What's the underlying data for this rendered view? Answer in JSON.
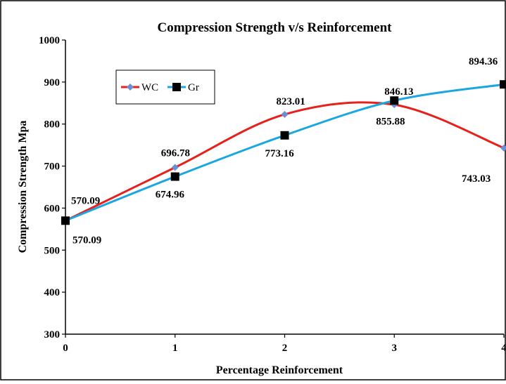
{
  "chart_data": {
    "type": "line",
    "title": "Compression Strength v/s Reinforcement",
    "xlabel": "Percentage Reinforcement",
    "ylabel": "Compression Strength Mpa",
    "x": [
      0,
      1,
      2,
      3,
      4
    ],
    "xlim": [
      0,
      4
    ],
    "ylim": [
      300,
      1000
    ],
    "yticks": [
      "300",
      "400",
      "500",
      "600",
      "700",
      "800",
      "900",
      "1000"
    ],
    "xticks": [
      "0",
      "1",
      "2",
      "3",
      "4"
    ],
    "grid": false,
    "legend_position": "top-left",
    "series": [
      {
        "name": "WC",
        "color": "#e8201c",
        "marker": "diamond",
        "marker_color": "#6b8fd6",
        "values": [
          570.09,
          696.78,
          823.01,
          846.13,
          743.03
        ],
        "labels": [
          "570.09",
          "696.78",
          "823.01",
          "846.13",
          "743.03"
        ]
      },
      {
        "name": "Gr",
        "color": "#1aa7e0",
        "marker": "square",
        "marker_color": "#000000",
        "values": [
          570.09,
          674.96,
          773.16,
          855.88,
          894.36
        ],
        "labels": [
          "570.09",
          "674.96",
          "773.16",
          "855.88",
          "894.36"
        ]
      }
    ]
  }
}
